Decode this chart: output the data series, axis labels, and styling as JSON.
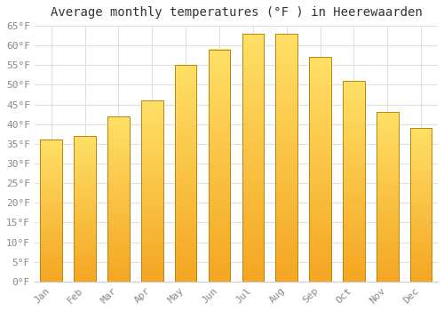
{
  "title": "Average monthly temperatures (°F ) in Heerewaarden",
  "months": [
    "Jan",
    "Feb",
    "Mar",
    "Apr",
    "May",
    "Jun",
    "Jul",
    "Aug",
    "Sep",
    "Oct",
    "Nov",
    "Dec"
  ],
  "values": [
    36,
    37,
    42,
    46,
    55,
    59,
    63,
    63,
    57,
    51,
    43,
    39
  ],
  "bar_color_bottom": "#F5A623",
  "bar_color_top": "#FFE066",
  "bar_edge_color": "#B8860B",
  "ylim": [
    0,
    65
  ],
  "yticks": [
    0,
    5,
    10,
    15,
    20,
    25,
    30,
    35,
    40,
    45,
    50,
    55,
    60,
    65
  ],
  "ytick_labels": [
    "0°F",
    "5°F",
    "10°F",
    "15°F",
    "20°F",
    "25°F",
    "30°F",
    "35°F",
    "40°F",
    "45°F",
    "50°F",
    "55°F",
    "60°F",
    "65°F"
  ],
  "background_color": "#FFFFFF",
  "plot_bg_color": "#FFFFFF",
  "grid_color": "#E0E0E0",
  "title_fontsize": 10,
  "tick_fontsize": 8,
  "tick_color": "#888888",
  "bar_width": 0.65,
  "n_gradient": 100
}
